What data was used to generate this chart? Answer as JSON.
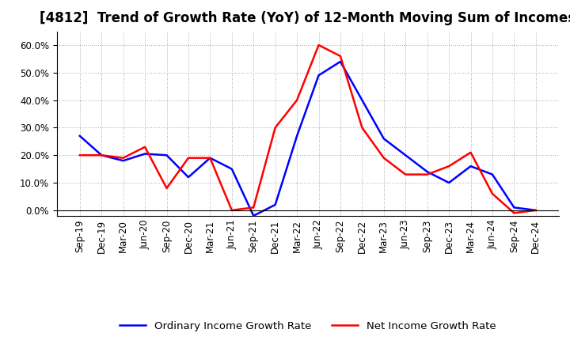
{
  "title": "[4812]  Trend of Growth Rate (YoY) of 12-Month Moving Sum of Incomes",
  "x_labels": [
    "Sep-19",
    "Dec-19",
    "Mar-20",
    "Jun-20",
    "Sep-20",
    "Dec-20",
    "Mar-21",
    "Jun-21",
    "Sep-21",
    "Dec-21",
    "Mar-22",
    "Jun-22",
    "Sep-22",
    "Dec-22",
    "Mar-23",
    "Jun-23",
    "Sep-23",
    "Dec-23",
    "Mar-24",
    "Jun-24",
    "Sep-24",
    "Dec-24"
  ],
  "ordinary_income": [
    0.27,
    0.2,
    0.18,
    0.205,
    0.2,
    0.12,
    0.19,
    0.15,
    -0.02,
    0.02,
    0.27,
    0.49,
    0.54,
    0.4,
    0.26,
    0.2,
    0.14,
    0.1,
    0.16,
    0.13,
    0.01,
    0.0
  ],
  "net_income": [
    0.2,
    0.2,
    0.19,
    0.23,
    0.08,
    0.19,
    0.19,
    0.0,
    0.01,
    0.3,
    0.4,
    0.6,
    0.56,
    0.3,
    0.19,
    0.13,
    0.13,
    0.16,
    0.21,
    0.06,
    -0.01,
    0.0
  ],
  "ordinary_color": "#0000FF",
  "net_color": "#FF0000",
  "ylim": [
    -0.02,
    0.65
  ],
  "yticks": [
    0.0,
    0.1,
    0.2,
    0.3,
    0.4,
    0.5,
    0.6
  ],
  "grid_color": "#AAAAAA",
  "background_color": "#FFFFFF",
  "legend_ordinary": "Ordinary Income Growth Rate",
  "legend_net": "Net Income Growth Rate",
  "title_fontsize": 12,
  "axis_fontsize": 8.5,
  "legend_fontsize": 9.5,
  "line_width": 1.8
}
